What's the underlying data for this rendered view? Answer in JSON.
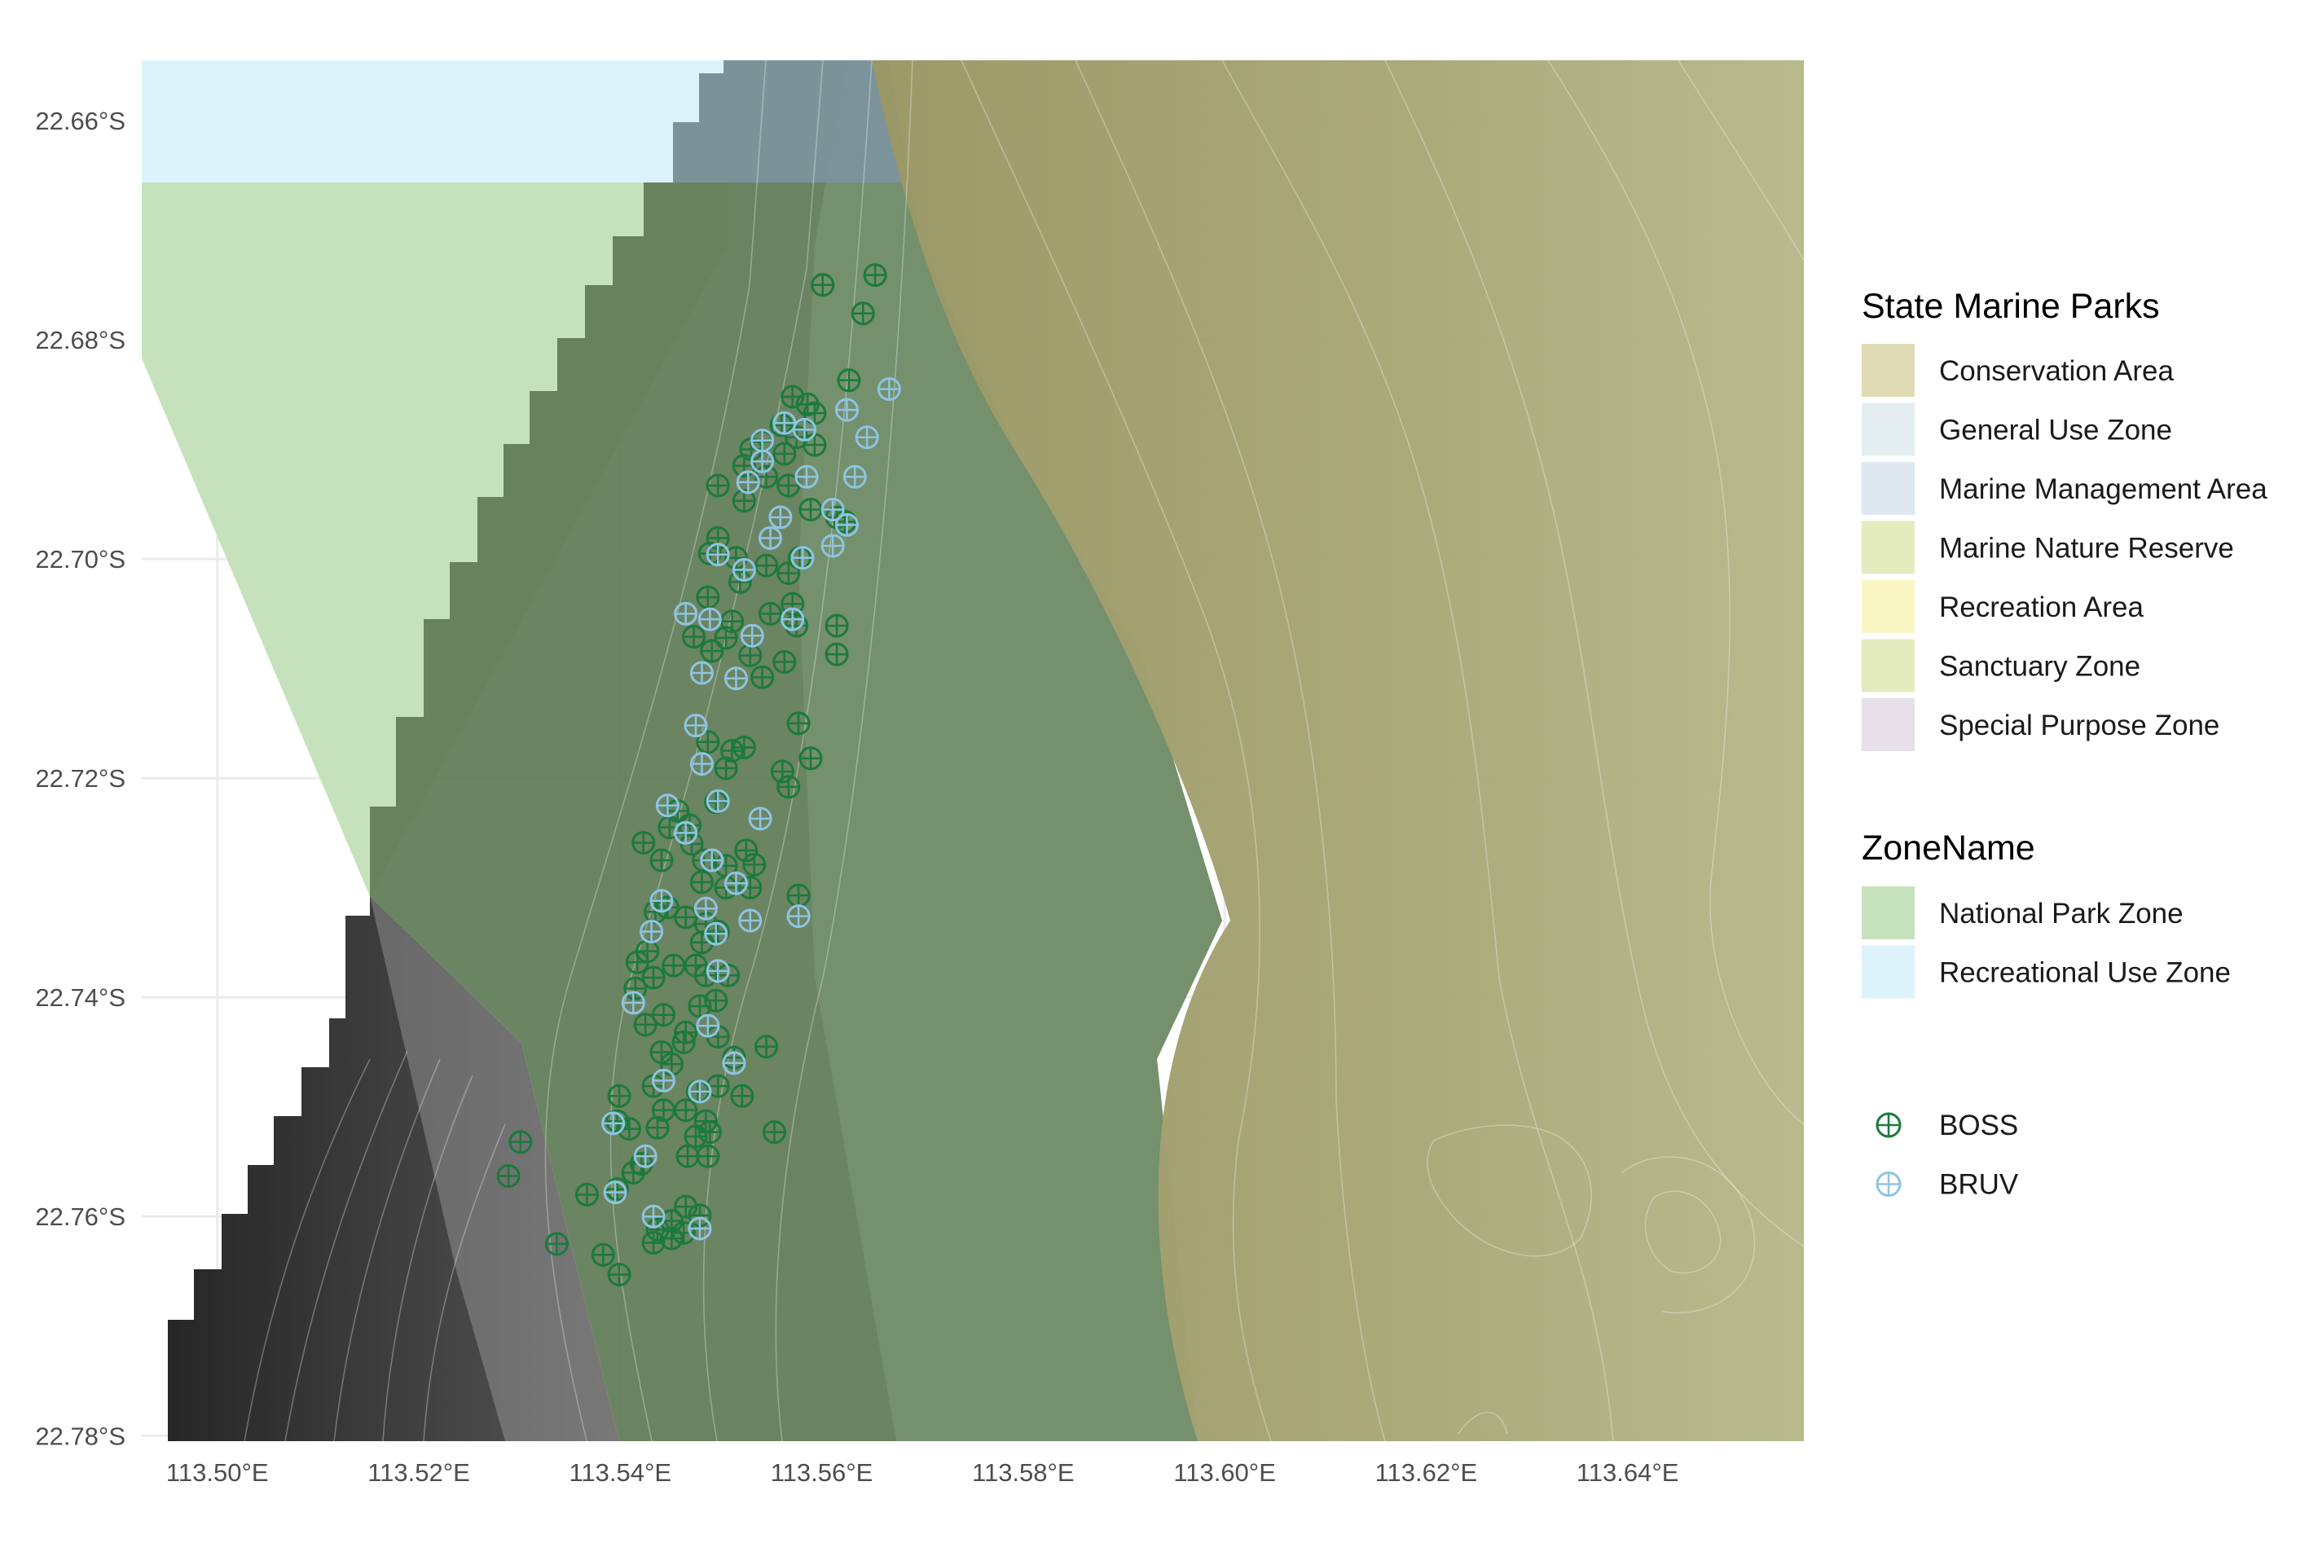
{
  "map": {
    "type": "map",
    "x_axis": {
      "ticks": [
        "113.50°E",
        "113.52°E",
        "113.54°E",
        "113.56°E",
        "113.58°E",
        "113.60°E",
        "113.62°E",
        "113.64°E"
      ],
      "tick_values": [
        113.5,
        113.52,
        113.54,
        113.56,
        113.58,
        113.6,
        113.62,
        113.64
      ],
      "range": [
        113.4925,
        113.6575
      ]
    },
    "y_axis": {
      "ticks": [
        "22.66°S",
        "22.68°S",
        "22.70°S",
        "22.72°S",
        "22.74°S",
        "22.76°S",
        "22.78°S"
      ],
      "tick_values": [
        -22.66,
        -22.68,
        -22.7,
        -22.72,
        -22.74,
        -22.76,
        -22.78
      ],
      "range": [
        -22.7805,
        -22.6545
      ]
    },
    "grid": true,
    "legend_position": "right",
    "colors": {
      "national_park": "#c5e2bc",
      "recreational_use": "#ddf3fb",
      "conservation": "#a8a165",
      "deep_water": "#2b2b2b",
      "shelf": "#6a6a6a",
      "boss": "#1b7a3c",
      "bruv": "#8ec4e2"
    },
    "samples": {
      "BOSS": [
        [
          113.5601,
          -22.675
        ],
        [
          113.5653,
          -22.6741
        ],
        [
          113.5641,
          -22.6776
        ],
        [
          113.5627,
          -22.6837
        ],
        [
          113.5571,
          -22.6852
        ],
        [
          113.5586,
          -22.6859
        ],
        [
          113.5593,
          -22.6867
        ],
        [
          113.556,
          -22.6878
        ],
        [
          113.5575,
          -22.6889
        ],
        [
          113.5593,
          -22.6896
        ],
        [
          113.5541,
          -22.6893
        ],
        [
          113.553,
          -22.69
        ],
        [
          113.5563,
          -22.6904
        ],
        [
          113.5523,
          -22.6915
        ],
        [
          113.5497,
          -22.6933
        ],
        [
          113.5545,
          -22.6925
        ],
        [
          113.5567,
          -22.6933
        ],
        [
          113.5523,
          -22.6947
        ],
        [
          113.5589,
          -22.6955
        ],
        [
          113.5615,
          -22.6962
        ],
        [
          113.5623,
          -22.6966
        ],
        [
          113.5497,
          -22.6981
        ],
        [
          113.5489,
          -22.6995
        ],
        [
          113.5515,
          -22.6999
        ],
        [
          113.5578,
          -22.6999
        ],
        [
          113.5545,
          -22.7006
        ],
        [
          113.5519,
          -22.7021
        ],
        [
          113.5567,
          -22.7013
        ],
        [
          113.5487,
          -22.7035
        ],
        [
          113.5511,
          -22.7057
        ],
        [
          113.5571,
          -22.7041
        ],
        [
          113.5549,
          -22.705
        ],
        [
          113.5575,
          -22.7061
        ],
        [
          113.5615,
          -22.7061
        ],
        [
          113.5473,
          -22.7071
        ],
        [
          113.5491,
          -22.7084
        ],
        [
          113.5505,
          -22.7072
        ],
        [
          113.5529,
          -22.7088
        ],
        [
          113.5563,
          -22.7094
        ],
        [
          113.5615,
          -22.7087
        ],
        [
          113.5541,
          -22.7108
        ],
        [
          113.5487,
          -22.7167
        ],
        [
          113.5511,
          -22.7175
        ],
        [
          113.5523,
          -22.7172
        ],
        [
          113.5577,
          -22.715
        ],
        [
          113.5589,
          -22.7182
        ],
        [
          113.5505,
          -22.7191
        ],
        [
          113.5561,
          -22.7194
        ],
        [
          113.5567,
          -22.7208
        ],
        [
          113.5457,
          -22.723
        ],
        [
          113.5495,
          -22.7222
        ],
        [
          113.5469,
          -22.7243
        ],
        [
          113.5449,
          -22.7245
        ],
        [
          113.5471,
          -22.726
        ],
        [
          113.5423,
          -22.7259
        ],
        [
          113.5441,
          -22.7275
        ],
        [
          113.5525,
          -22.7266
        ],
        [
          113.5483,
          -22.7275
        ],
        [
          113.5505,
          -22.728
        ],
        [
          113.5533,
          -22.7279
        ],
        [
          113.5481,
          -22.7295
        ],
        [
          113.5505,
          -22.73
        ],
        [
          113.5529,
          -22.73
        ],
        [
          113.5577,
          -22.7307
        ],
        [
          113.5447,
          -22.7318
        ],
        [
          113.5435,
          -22.7322
        ],
        [
          113.5465,
          -22.7327
        ],
        [
          113.5485,
          -22.7333
        ],
        [
          113.5497,
          -22.734
        ],
        [
          113.5481,
          -22.735
        ],
        [
          113.5427,
          -22.7358
        ],
        [
          113.5417,
          -22.7368
        ],
        [
          113.5453,
          -22.7371
        ],
        [
          113.5475,
          -22.7371
        ],
        [
          113.5485,
          -22.738
        ],
        [
          113.5507,
          -22.738
        ],
        [
          113.5433,
          -22.7382
        ],
        [
          113.5415,
          -22.7392
        ],
        [
          113.5495,
          -22.7403
        ],
        [
          113.5479,
          -22.7408
        ],
        [
          113.5443,
          -22.7416
        ],
        [
          113.5425,
          -22.7425
        ],
        [
          113.5465,
          -22.7432
        ],
        [
          113.5497,
          -22.7436
        ],
        [
          113.5441,
          -22.745
        ],
        [
          113.5463,
          -22.7441
        ],
        [
          113.5451,
          -22.7461
        ],
        [
          113.5513,
          -22.7455
        ],
        [
          113.5545,
          -22.7445
        ],
        [
          113.5433,
          -22.7481
        ],
        [
          113.5477,
          -22.7486
        ],
        [
          113.5497,
          -22.7481
        ],
        [
          113.5521,
          -22.749
        ],
        [
          113.5443,
          -22.7503
        ],
        [
          113.5465,
          -22.7503
        ],
        [
          113.5485,
          -22.7513
        ],
        [
          113.5399,
          -22.749
        ],
        [
          113.5397,
          -22.7513
        ],
        [
          113.5409,
          -22.752
        ],
        [
          113.5437,
          -22.7519
        ],
        [
          113.5475,
          -22.7527
        ],
        [
          113.5489,
          -22.7523
        ],
        [
          113.5553,
          -22.7523
        ],
        [
          113.5301,
          -22.7532
        ],
        [
          113.5421,
          -22.7552
        ],
        [
          113.5467,
          -22.7545
        ],
        [
          113.5487,
          -22.7545
        ],
        [
          113.5413,
          -22.756
        ],
        [
          113.5289,
          -22.7563
        ],
        [
          113.5397,
          -22.7575
        ],
        [
          113.5367,
          -22.758
        ],
        [
          113.5465,
          -22.7591
        ],
        [
          113.5479,
          -22.7599
        ],
        [
          113.5451,
          -22.7604
        ],
        [
          113.5437,
          -22.7612
        ],
        [
          113.5451,
          -22.762
        ],
        [
          113.5383,
          -22.7635
        ],
        [
          113.5433,
          -22.7624
        ],
        [
          113.5463,
          -22.7615
        ],
        [
          113.5337,
          -22.7625
        ],
        [
          113.5399,
          -22.7653
        ]
      ],
      "BRUV": [
        [
          113.5667,
          -22.6845
        ],
        [
          113.5625,
          -22.6864
        ],
        [
          113.5645,
          -22.6889
        ],
        [
          113.5583,
          -22.6882
        ],
        [
          113.5563,
          -22.6876
        ],
        [
          113.5541,
          -22.6892
        ],
        [
          113.5541,
          -22.6911
        ],
        [
          113.5585,
          -22.6925
        ],
        [
          113.5527,
          -22.693
        ],
        [
          113.5633,
          -22.6925
        ],
        [
          113.5611,
          -22.6955
        ],
        [
          113.5559,
          -22.6962
        ],
        [
          113.5625,
          -22.6969
        ],
        [
          113.5611,
          -22.6988
        ],
        [
          113.5549,
          -22.6981
        ],
        [
          113.5497,
          -22.6996
        ],
        [
          113.5581,
          -22.6999
        ],
        [
          113.5523,
          -22.701
        ],
        [
          113.5465,
          -22.705
        ],
        [
          113.5489,
          -22.7055
        ],
        [
          113.5531,
          -22.707
        ],
        [
          113.5571,
          -22.7055
        ],
        [
          113.5481,
          -22.7104
        ],
        [
          113.5515,
          -22.7109
        ],
        [
          113.5475,
          -22.7152
        ],
        [
          113.5481,
          -22.7187
        ],
        [
          113.5497,
          -22.7221
        ],
        [
          113.5539,
          -22.7237
        ],
        [
          113.5447,
          -22.7225
        ],
        [
          113.5465,
          -22.725
        ],
        [
          113.5491,
          -22.7275
        ],
        [
          113.5515,
          -22.7296
        ],
        [
          113.5485,
          -22.7319
        ],
        [
          113.5441,
          -22.7312
        ],
        [
          113.5529,
          -22.733
        ],
        [
          113.5577,
          -22.7326
        ],
        [
          113.5495,
          -22.7342
        ],
        [
          113.5431,
          -22.734
        ],
        [
          113.5497,
          -22.7376
        ],
        [
          113.5413,
          -22.7405
        ],
        [
          113.5487,
          -22.7426
        ],
        [
          113.5513,
          -22.746
        ],
        [
          113.5443,
          -22.7476
        ],
        [
          113.5479,
          -22.7486
        ],
        [
          113.5393,
          -22.7515
        ],
        [
          113.5425,
          -22.7545
        ],
        [
          113.5395,
          -22.7578
        ],
        [
          113.5433,
          -22.76
        ],
        [
          113.5479,
          -22.7611
        ]
      ]
    }
  },
  "legend": {
    "state_marine_parks": {
      "title": "State Marine Parks",
      "items": [
        {
          "label": "Conservation Area",
          "color": "#e0dbb4"
        },
        {
          "label": "General Use Zone",
          "color": "#e4eef0"
        },
        {
          "label": "Marine Management Area",
          "color": "#dfe7f1"
        },
        {
          "label": "Marine Nature Reserve",
          "color": "#e4ebbf"
        },
        {
          "label": "Recreation Area",
          "color": "#faf6c4"
        },
        {
          "label": "Sanctuary Zone",
          "color": "#e4ebbf"
        },
        {
          "label": "Special Purpose Zone",
          "color": "#e5e0e9"
        }
      ]
    },
    "zone_name": {
      "title": "ZoneName",
      "items": [
        {
          "label": "National Park Zone",
          "color": "#c5e2bc"
        },
        {
          "label": "Recreational Use Zone",
          "color": "#ddf3fb"
        }
      ]
    },
    "method": {
      "items": [
        {
          "label": "BOSS",
          "color": "#1b7a3c"
        },
        {
          "label": "BRUV",
          "color": "#8ec4e2"
        }
      ]
    }
  }
}
